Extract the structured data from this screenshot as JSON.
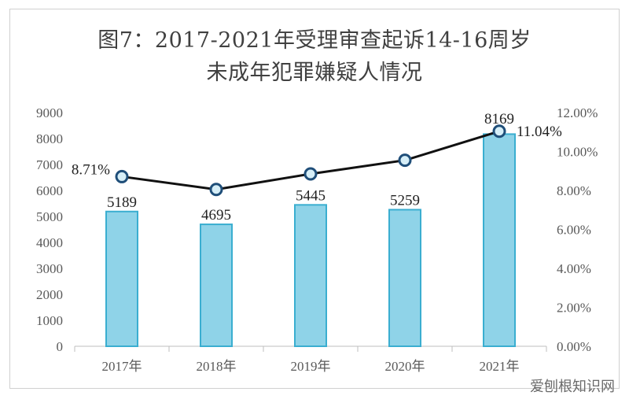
{
  "chart_data": {
    "type": "bar",
    "title_line1": "图7：2017-2021年受理审查起诉14-16周岁",
    "title_line2": "未成年犯罪嫌疑人情况",
    "categories": [
      "2017年",
      "2018年",
      "2019年",
      "2020年",
      "2021年"
    ],
    "series": [
      {
        "type": "bar",
        "axis": "left",
        "values": [
          5189,
          4695,
          5445,
          5259,
          8169
        ],
        "value_labels": [
          "5189",
          "4695",
          "5445",
          "5259",
          "8169"
        ]
      },
      {
        "type": "line",
        "axis": "right",
        "values": [
          8.71,
          8.05,
          8.85,
          9.55,
          11.04
        ],
        "value_labels": [
          "8.71%",
          "",
          "",
          "",
          "11.04%"
        ]
      }
    ],
    "y_left": {
      "min": 0,
      "max": 9000,
      "ticks": [
        "0",
        "1000",
        "2000",
        "3000",
        "4000",
        "5000",
        "6000",
        "7000",
        "8000",
        "9000"
      ]
    },
    "y_right": {
      "min": 0,
      "max": 12,
      "ticks": [
        "0.00%",
        "2.00%",
        "4.00%",
        "6.00%",
        "8.00%",
        "10.00%",
        "12.00%"
      ]
    },
    "grid": false,
    "legend": "none",
    "colors": {
      "bar_fill": "#8fd3e8",
      "bar_stroke": "#3aaed0",
      "line": "#111111",
      "marker_fill": "#d6eef7",
      "marker_stroke": "#1f4e79",
      "axis": "#bfbfbf"
    }
  },
  "watermark": "爱刨根知识网"
}
